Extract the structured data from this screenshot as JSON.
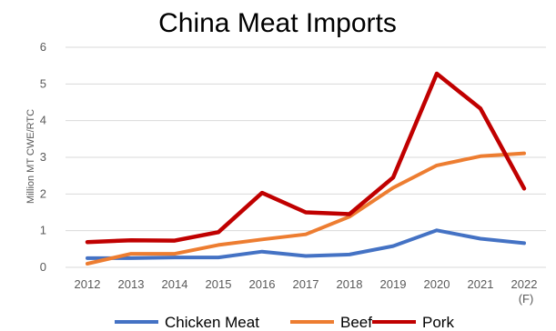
{
  "chart_data": {
    "type": "line",
    "title": "China Meat Imports",
    "ylabel": "Million MT CWE/RTC",
    "xlabel": "",
    "categories": [
      "2012",
      "2013",
      "2014",
      "2015",
      "2016",
      "2017",
      "2018",
      "2019",
      "2020",
      "2021",
      "2022"
    ],
    "category_sublabels": [
      "",
      "",
      "",
      "",
      "",
      "",
      "",
      "",
      "",
      "",
      "(F)"
    ],
    "ylim": [
      0,
      6
    ],
    "yticks": [
      "0",
      "1",
      "2",
      "3",
      "4",
      "5",
      "6"
    ],
    "grid": true,
    "legend_position": "bottom",
    "series": [
      {
        "name": "Chicken Meat",
        "color": "#4472c4",
        "values": [
          0.25,
          0.25,
          0.27,
          0.27,
          0.43,
          0.31,
          0.35,
          0.58,
          1.01,
          0.78,
          0.66
        ]
      },
      {
        "name": "Beef",
        "color": "#ed7d31",
        "values": [
          0.1,
          0.37,
          0.37,
          0.61,
          0.76,
          0.9,
          1.38,
          2.17,
          2.78,
          3.03,
          3.11
        ]
      },
      {
        "name": "Pork",
        "color": "#c00000",
        "values": [
          0.69,
          0.74,
          0.73,
          0.96,
          2.03,
          1.5,
          1.45,
          2.45,
          5.28,
          4.33,
          2.15
        ]
      }
    ]
  }
}
